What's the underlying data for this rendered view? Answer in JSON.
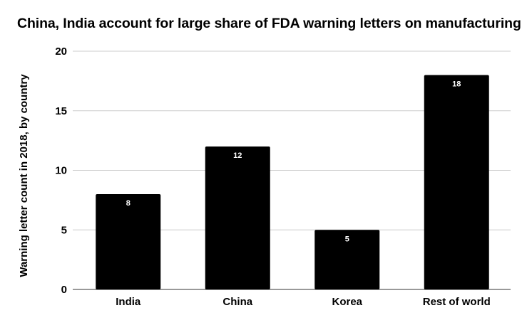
{
  "chart_data": {
    "type": "bar",
    "title": "China, India account for large share of FDA warning letters on manufacturing",
    "xlabel": "",
    "ylabel": "Warning letter count in 2018, by country",
    "categories": [
      "India",
      "China",
      "Korea",
      "Rest of world"
    ],
    "values": [
      8,
      12,
      5,
      18
    ],
    "data_labels": [
      "8",
      "12",
      "5",
      "18"
    ],
    "ylim": [
      0,
      20
    ],
    "yticks": [
      0,
      5,
      10,
      15,
      20
    ],
    "ytick_labels": [
      "0",
      "5",
      "10",
      "15",
      "20"
    ],
    "grid": true,
    "legend": "none",
    "colors": {
      "bar": "#000000",
      "grid": "#cccccc",
      "axis": "#333333",
      "label": "#ffffff"
    }
  }
}
